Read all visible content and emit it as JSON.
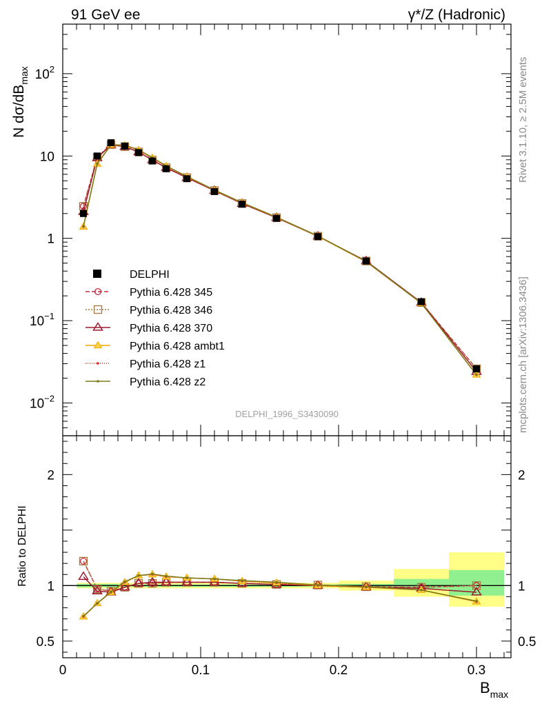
{
  "header": {
    "left": "91 GeV ee",
    "right": "γ*/Z (Hadronic)"
  },
  "side_labels": {
    "rivet": "Rivet 3.1.10, ≥ 2.5M events",
    "mcplots": "mcplots.cern.ch [arXiv:1306.3436]"
  },
  "analysis_tag": "DELPHI_1996_S3430090",
  "chart_data": [
    {
      "type": "line",
      "panel": "main",
      "ylabel": "N dσ/dB_max",
      "yscale": "log",
      "ylim": [
        0.004,
        400
      ],
      "xlim": [
        0,
        0.325
      ],
      "yticks": [
        {
          "v": 100,
          "m": "10",
          "e": "2"
        },
        {
          "v": 10,
          "m": "10",
          "e": ""
        },
        {
          "v": 1,
          "m": "1",
          "e": ""
        },
        {
          "v": 0.1,
          "m": "10",
          "e": "−1"
        },
        {
          "v": 0.01,
          "m": "10",
          "e": "−2"
        }
      ],
      "legend_position": "left-middle",
      "x": [
        0.015,
        0.025,
        0.035,
        0.045,
        0.055,
        0.065,
        0.075,
        0.09,
        0.11,
        0.13,
        0.155,
        0.185,
        0.22,
        0.26,
        0.3
      ],
      "data": {
        "name": "DELPHI",
        "values": [
          2.0,
          10.0,
          14.5,
          13.2,
          11.0,
          8.7,
          7.0,
          5.3,
          3.7,
          2.6,
          1.75,
          1.05,
          0.53,
          0.17,
          0.026
        ]
      },
      "series": [
        {
          "name": "Pythia 6.428 345",
          "color": "#c8283c",
          "dash": "6,3",
          "marker": "circle",
          "values": [
            2.45,
            9.7,
            13.8,
            13.0,
            11.2,
            8.9,
            7.2,
            5.45,
            3.8,
            2.65,
            1.78,
            1.06,
            0.53,
            0.166,
            0.026
          ]
        },
        {
          "name": "Pythia 6.428 346",
          "color": "#a8753a",
          "dash": "2,2",
          "marker": "square",
          "values": [
            2.45,
            9.7,
            13.8,
            13.0,
            11.2,
            8.9,
            7.2,
            5.45,
            3.8,
            2.65,
            1.78,
            1.06,
            0.53,
            0.166,
            0.026
          ]
        },
        {
          "name": "Pythia 6.428 370",
          "color": "#9b1a30",
          "dash": "",
          "marker": "triangle-open",
          "values": [
            2.1,
            9.5,
            13.6,
            13.0,
            11.2,
            8.95,
            7.2,
            5.45,
            3.8,
            2.65,
            1.78,
            1.06,
            0.53,
            0.166,
            0.024
          ]
        },
        {
          "name": "Pythia 6.428 ambt1",
          "color": "#f0a800",
          "dash": "",
          "marker": "triangle-filled",
          "values": [
            1.38,
            8.0,
            13.6,
            13.5,
            11.8,
            9.5,
            7.55,
            5.6,
            3.85,
            2.7,
            1.8,
            1.06,
            0.52,
            0.163,
            0.022
          ]
        },
        {
          "name": "Pythia 6.428 z1",
          "color": "#e8241a",
          "dash": "1,2",
          "marker": "dot",
          "values": [
            1.38,
            8.0,
            13.6,
            13.5,
            11.8,
            9.5,
            7.55,
            5.6,
            3.85,
            2.7,
            1.8,
            1.06,
            0.52,
            0.163,
            0.022
          ]
        },
        {
          "name": "Pythia 6.428 z2",
          "color": "#7a7a18",
          "dash": "",
          "marker": "dot",
          "values": [
            1.4,
            8.1,
            13.7,
            13.6,
            11.9,
            9.6,
            7.6,
            5.65,
            3.87,
            2.72,
            1.81,
            1.07,
            0.525,
            0.163,
            0.022
          ]
        }
      ]
    },
    {
      "type": "line",
      "panel": "ratio",
      "ylabel": "Ratio to DELPHI",
      "xlabel": "B_max",
      "ylim": [
        0.35,
        2.35
      ],
      "xlim": [
        0,
        0.325
      ],
      "yticks": [
        {
          "v": 2,
          "label": "2"
        },
        {
          "v": 1,
          "label": "1"
        },
        {
          "v": 0.5,
          "label": "0.5"
        }
      ],
      "xticks": [
        {
          "v": 0,
          "label": "0"
        },
        {
          "v": 0.1,
          "label": "0.1"
        },
        {
          "v": 0.2,
          "label": "0.2"
        },
        {
          "v": 0.3,
          "label": "0.3"
        }
      ],
      "bands": [
        {
          "x0": 0.01,
          "x1": 0.04,
          "stat": [
            0.985,
            1.015
          ],
          "tot": [
            0.975,
            1.025
          ]
        },
        {
          "x0": 0.04,
          "x1": 0.2,
          "stat": [
            0.99,
            1.01
          ],
          "tot": [
            0.975,
            1.025
          ]
        },
        {
          "x0": 0.2,
          "x1": 0.24,
          "stat": [
            0.985,
            1.015
          ],
          "tot": [
            0.955,
            1.045
          ]
        },
        {
          "x0": 0.24,
          "x1": 0.28,
          "stat": [
            0.97,
            1.06
          ],
          "tot": [
            0.9,
            1.15
          ]
        },
        {
          "x0": 0.28,
          "x1": 0.32,
          "stat": [
            0.91,
            1.14
          ],
          "tot": [
            0.81,
            1.3
          ]
        }
      ],
      "series": [
        {
          "name": "Pythia 6.428 345",
          "values": [
            1.22,
            0.97,
            0.95,
            0.985,
            1.02,
            1.02,
            1.03,
            1.03,
            1.03,
            1.02,
            1.01,
            1.005,
            0.99,
            0.985,
            1.0
          ]
        },
        {
          "name": "Pythia 6.428 346",
          "values": [
            1.22,
            0.97,
            0.95,
            0.985,
            1.02,
            1.02,
            1.03,
            1.03,
            1.03,
            1.02,
            1.01,
            1.005,
            0.99,
            0.985,
            1.0
          ]
        },
        {
          "name": "Pythia 6.428 370",
          "values": [
            1.08,
            0.95,
            0.94,
            0.985,
            1.02,
            1.03,
            1.03,
            1.03,
            1.03,
            1.02,
            1.01,
            1.0,
            0.985,
            0.975,
            0.94
          ]
        },
        {
          "name": "Pythia 6.428 ambt1",
          "values": [
            0.72,
            0.84,
            0.94,
            1.03,
            1.09,
            1.1,
            1.08,
            1.07,
            1.06,
            1.04,
            1.025,
            1.0,
            0.985,
            0.96,
            0.855
          ]
        },
        {
          "name": "Pythia 6.428 z1",
          "values": [
            0.72,
            0.84,
            0.94,
            1.03,
            1.09,
            1.1,
            1.08,
            1.07,
            1.06,
            1.04,
            1.025,
            1.0,
            0.985,
            0.96,
            0.855
          ]
        },
        {
          "name": "Pythia 6.428 z2",
          "values": [
            0.725,
            0.84,
            0.945,
            1.035,
            1.09,
            1.105,
            1.085,
            1.07,
            1.06,
            1.045,
            1.03,
            1.005,
            0.99,
            0.96,
            0.86
          ]
        }
      ]
    }
  ]
}
